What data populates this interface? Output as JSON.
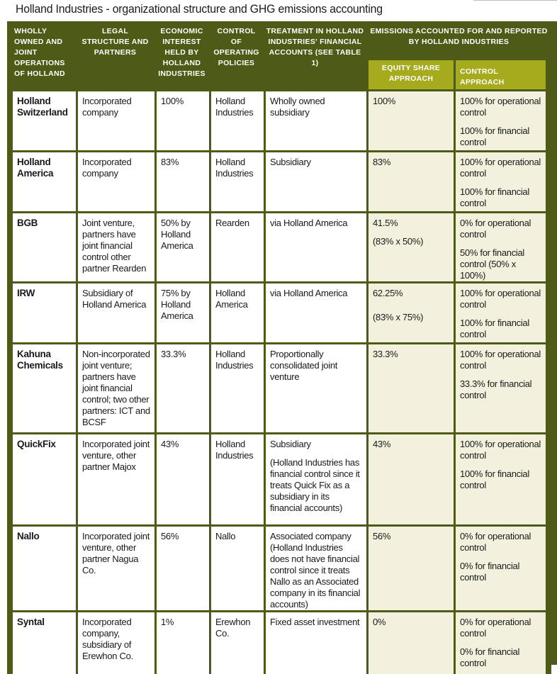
{
  "title": "Holland Industries - organizational structure and GHG emissions accounting",
  "headers": {
    "col1": "WHOLLY OWNED AND JOINT OPERATIONS OF HOLLAND",
    "col2": "LEGAL STRUCTURE AND PARTNERS",
    "col3": "ECONOMIC INTEREST HELD BY HOLLAND INDUSTRIES",
    "col4": "CONTROL OF OPERATING POLICIES",
    "col5": "TREATMENT IN HOLLAND INDUSTRIES' FINANCIAL ACCOUNTS (SEE TABLE 1)",
    "group": "EMISSIONS ACCOUNTED FOR AND REPORTED BY HOLLAND INDUSTRIES",
    "equity": "EQUITY SHARE APPROACH",
    "control": "CONTROL APPROACH"
  },
  "rows": [
    {
      "name": "Holland Switzerland",
      "legal": "Incorporated company",
      "interest": "100%",
      "policies": "Holland Industries",
      "treatment": "Wholly owned subsidiary",
      "treatment_note": "",
      "equity": "100%",
      "equity_note": "",
      "control_op": "100% for operational control",
      "control_fin": "100% for financial control"
    },
    {
      "name": "Holland America",
      "legal": "Incorporated company",
      "interest": "83%",
      "policies": "Holland Industries",
      "treatment": "Subsidiary",
      "treatment_note": "",
      "equity": "83%",
      "equity_note": "",
      "control_op": "100% for operational control",
      "control_fin": "100% for financial control"
    },
    {
      "name": "BGB",
      "legal": "Joint venture, partners have joint financial control other partner Rearden",
      "interest": "50% by Holland America",
      "policies": "Rearden",
      "treatment": "via Holland America",
      "treatment_note": "",
      "equity": "41.5%",
      "equity_note": "(83% x 50%)",
      "control_op": "0% for operational control",
      "control_fin": "50% for financial control (50% x 100%)"
    },
    {
      "name": "IRW",
      "legal": "Subsidiary of Holland America",
      "interest": "75% by Holland America",
      "policies": "Holland America",
      "treatment": "via Holland America",
      "treatment_note": "",
      "equity": "62.25%",
      "equity_note": "(83% x 75%)",
      "control_op": "100% for operational control",
      "control_fin": "100% for financial control"
    },
    {
      "name": "Kahuna Chemicals",
      "legal": "Non-incorporated joint venture; partners have joint financial control; two other partners: ICT and BCSF",
      "interest": "33.3%",
      "policies": "Holland Industries",
      "treatment": "Proportionally consolidated joint venture",
      "treatment_note": "",
      "equity": "33.3%",
      "equity_note": "",
      "control_op": "100% for operational control",
      "control_fin": "33.3% for financial control"
    },
    {
      "name": "QuickFix",
      "legal": "Incorporated joint venture, other partner Majox",
      "interest": "43%",
      "policies": "Holland Industries",
      "treatment": "Subsidiary",
      "treatment_note": "(Holland Industries has financial control since it treats Quick Fix as a subsidiary in its financial accounts)",
      "equity": "43%",
      "equity_note": "",
      "control_op": "100% for operational control",
      "control_fin": "100% for financial control"
    },
    {
      "name": "Nallo",
      "legal": "Incorporated joint venture, other partner Nagua Co.",
      "interest": "56%",
      "policies": "Nallo",
      "treatment": "Associated company (Holland Industries does not have financial control since it treats Nallo as an Associated company in its financial accounts)",
      "treatment_note": "",
      "equity": "56%",
      "equity_note": "",
      "control_op": "0% for operational control",
      "control_fin": "0% for financial control"
    },
    {
      "name": "Syntal",
      "legal": "Incorporated company, subsidiary of Erewhon Co.",
      "interest": "1%",
      "policies": "Erewhon Co.",
      "treatment": "Fixed asset investment",
      "treatment_note": "",
      "equity": "0%",
      "equity_note": "",
      "control_op": "0% for operational control",
      "control_fin": "0% for financial control"
    }
  ]
}
